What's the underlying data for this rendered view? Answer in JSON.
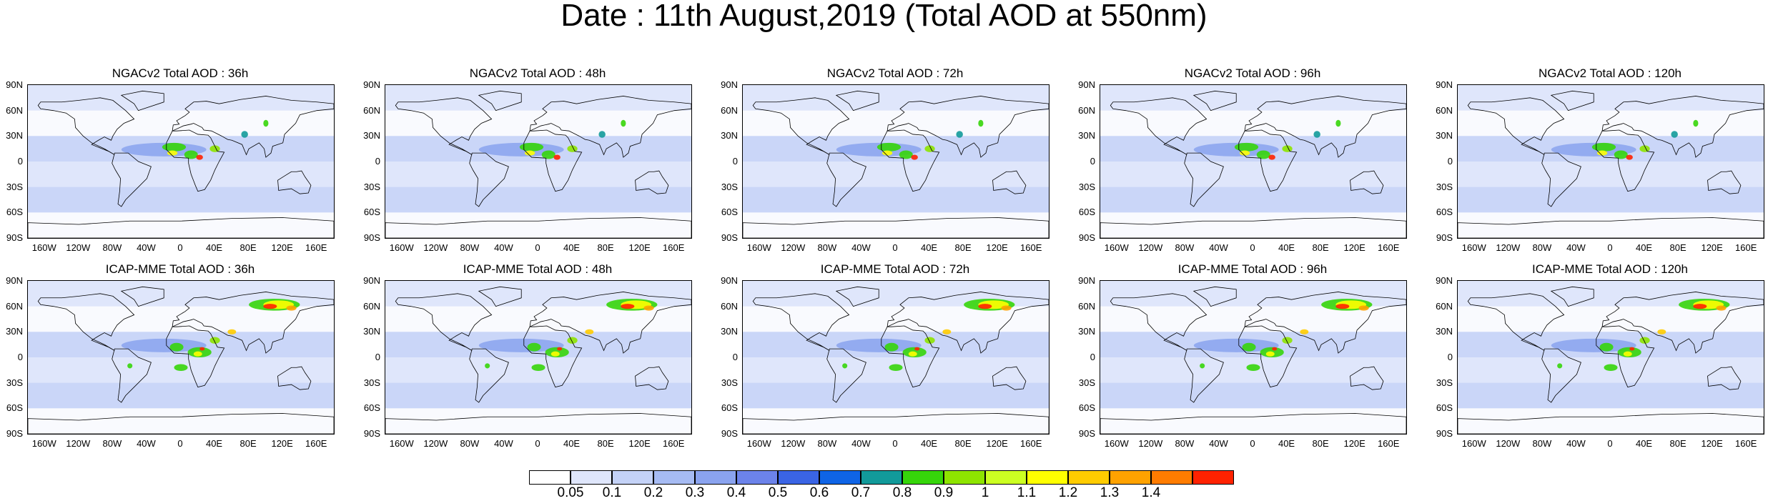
{
  "title": "Date : 11th August,2019 (Total AOD at 550nm)",
  "rows": [
    {
      "model": "NGACv2",
      "panels": [
        {
          "title": "NGACv2 Total AOD : 36h"
        },
        {
          "title": "NGACv2 Total AOD : 48h"
        },
        {
          "title": "NGACv2 Total AOD : 72h"
        },
        {
          "title": "NGACv2 Total AOD : 96h"
        },
        {
          "title": "NGACv2 Total AOD : 120h"
        }
      ]
    },
    {
      "model": "ICAP-MME",
      "panels": [
        {
          "title": "ICAP-MME Total AOD : 36h"
        },
        {
          "title": "ICAP-MME Total AOD : 48h"
        },
        {
          "title": "ICAP-MME Total AOD : 72h"
        },
        {
          "title": "ICAP-MME Total AOD : 96h"
        },
        {
          "title": "ICAP-MME Total AOD : 120h"
        }
      ]
    }
  ],
  "lat_ticks": [
    "90N",
    "60N",
    "30N",
    "0",
    "30S",
    "60S",
    "90S"
  ],
  "lon_ticks": [
    "160W",
    "120W",
    "80W",
    "40W",
    "0",
    "40E",
    "80E",
    "120E",
    "160E"
  ],
  "colorbar": {
    "labels": [
      "0.05",
      "0.1",
      "0.2",
      "0.3",
      "0.4",
      "0.5",
      "0.6",
      "0.7",
      "0.8",
      "0.9",
      "1",
      "1.1",
      "1.2",
      "1.3",
      "1.4"
    ],
    "colors": [
      "#ffffff",
      "#dfe6fb",
      "#c4d2f7",
      "#a6bbf3",
      "#8aa3ef",
      "#6c83ea",
      "#3a64e4",
      "#0f64e6",
      "#129a9a",
      "#36d50a",
      "#8ee400",
      "#ccff22",
      "#ffff00",
      "#ffcc00",
      "#ffa200",
      "#ff7c00",
      "#ff2200"
    ]
  }
}
